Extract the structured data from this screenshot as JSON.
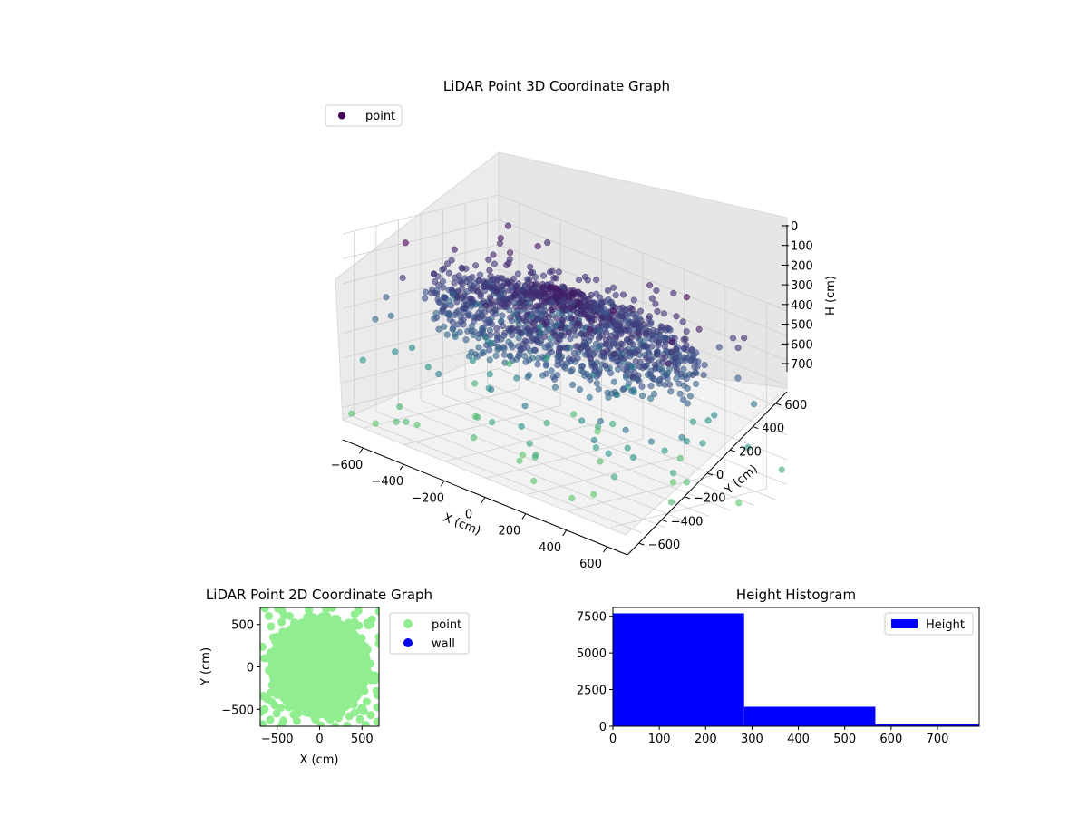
{
  "chart_data": [
    {
      "type": "scatter",
      "projection": "3d",
      "title": "LiDAR Point 3D Coordinate Graph",
      "xlabel": "X (cm)",
      "ylabel": "Y (cm)",
      "zlabel": "H (cm)",
      "xlim": [
        -700,
        700
      ],
      "ylim": [
        -700,
        700
      ],
      "zlim": [
        0,
        750
      ],
      "zaxis_inverted": true,
      "xticks": [
        -600,
        -400,
        -200,
        0,
        200,
        400,
        600
      ],
      "yticks": [
        -600,
        -400,
        -200,
        0,
        200,
        400,
        600
      ],
      "zticks": [
        0,
        100,
        200,
        300,
        400,
        500,
        600,
        700
      ],
      "legend": {
        "labels": [
          "point"
        ],
        "loc": "upper-left"
      },
      "colormap": [
        "#440154",
        "#3b528b",
        "#21918c",
        "#5ec962"
      ],
      "color_by": "H",
      "series": [
        {
          "name": "point",
          "description": "dense ring/spoke structure of LiDAR returns centered near (0,0), heights mostly 100–400 cm",
          "sample_points": [
            [
              0,
              0,
              150
            ],
            [
              200,
              100,
              180
            ],
            [
              -150,
              250,
              200
            ],
            [
              300,
              -200,
              220
            ],
            [
              -400,
              -100,
              260
            ],
            [
              450,
              300,
              240
            ],
            [
              -300,
              -400,
              210
            ],
            [
              100,
              -450,
              230
            ],
            [
              600,
              500,
              120
            ],
            [
              -600,
              600,
              80
            ],
            [
              650,
              -100,
              300
            ],
            [
              -650,
              -500,
              350
            ]
          ]
        }
      ],
      "grid": true
    },
    {
      "type": "scatter",
      "title": "LiDAR Point 2D Coordinate Graph",
      "xlabel": "X (cm)",
      "ylabel": "Y (cm)",
      "xlim": [
        -700,
        700
      ],
      "ylim": [
        -700,
        700
      ],
      "xticks": [
        -500,
        0,
        500
      ],
      "yticks": [
        -500,
        0,
        500
      ],
      "legend": {
        "labels": [
          "point",
          "wall"
        ],
        "loc": "outside-right"
      },
      "series": [
        {
          "name": "point",
          "color": "#90ee90"
        },
        {
          "name": "wall",
          "color": "#0000ff",
          "points": []
        }
      ],
      "grid": false
    },
    {
      "type": "bar",
      "subtype": "histogram",
      "title": "Height Histogram",
      "xlabel": "",
      "ylabel": "",
      "xlim": [
        0,
        790
      ],
      "ylim": [
        0,
        8100
      ],
      "xticks": [
        0,
        100,
        200,
        300,
        400,
        500,
        600,
        700
      ],
      "yticks": [
        0,
        2500,
        5000,
        7500
      ],
      "bins": [
        {
          "x0": 0,
          "x1": 283,
          "count": 7700
        },
        {
          "x0": 283,
          "x1": 566,
          "count": 1330
        },
        {
          "x0": 566,
          "x1": 790,
          "count": 130
        }
      ],
      "color": "#0000ff",
      "legend": {
        "labels": [
          "Height"
        ],
        "loc": "upper-right"
      },
      "grid": false
    }
  ]
}
